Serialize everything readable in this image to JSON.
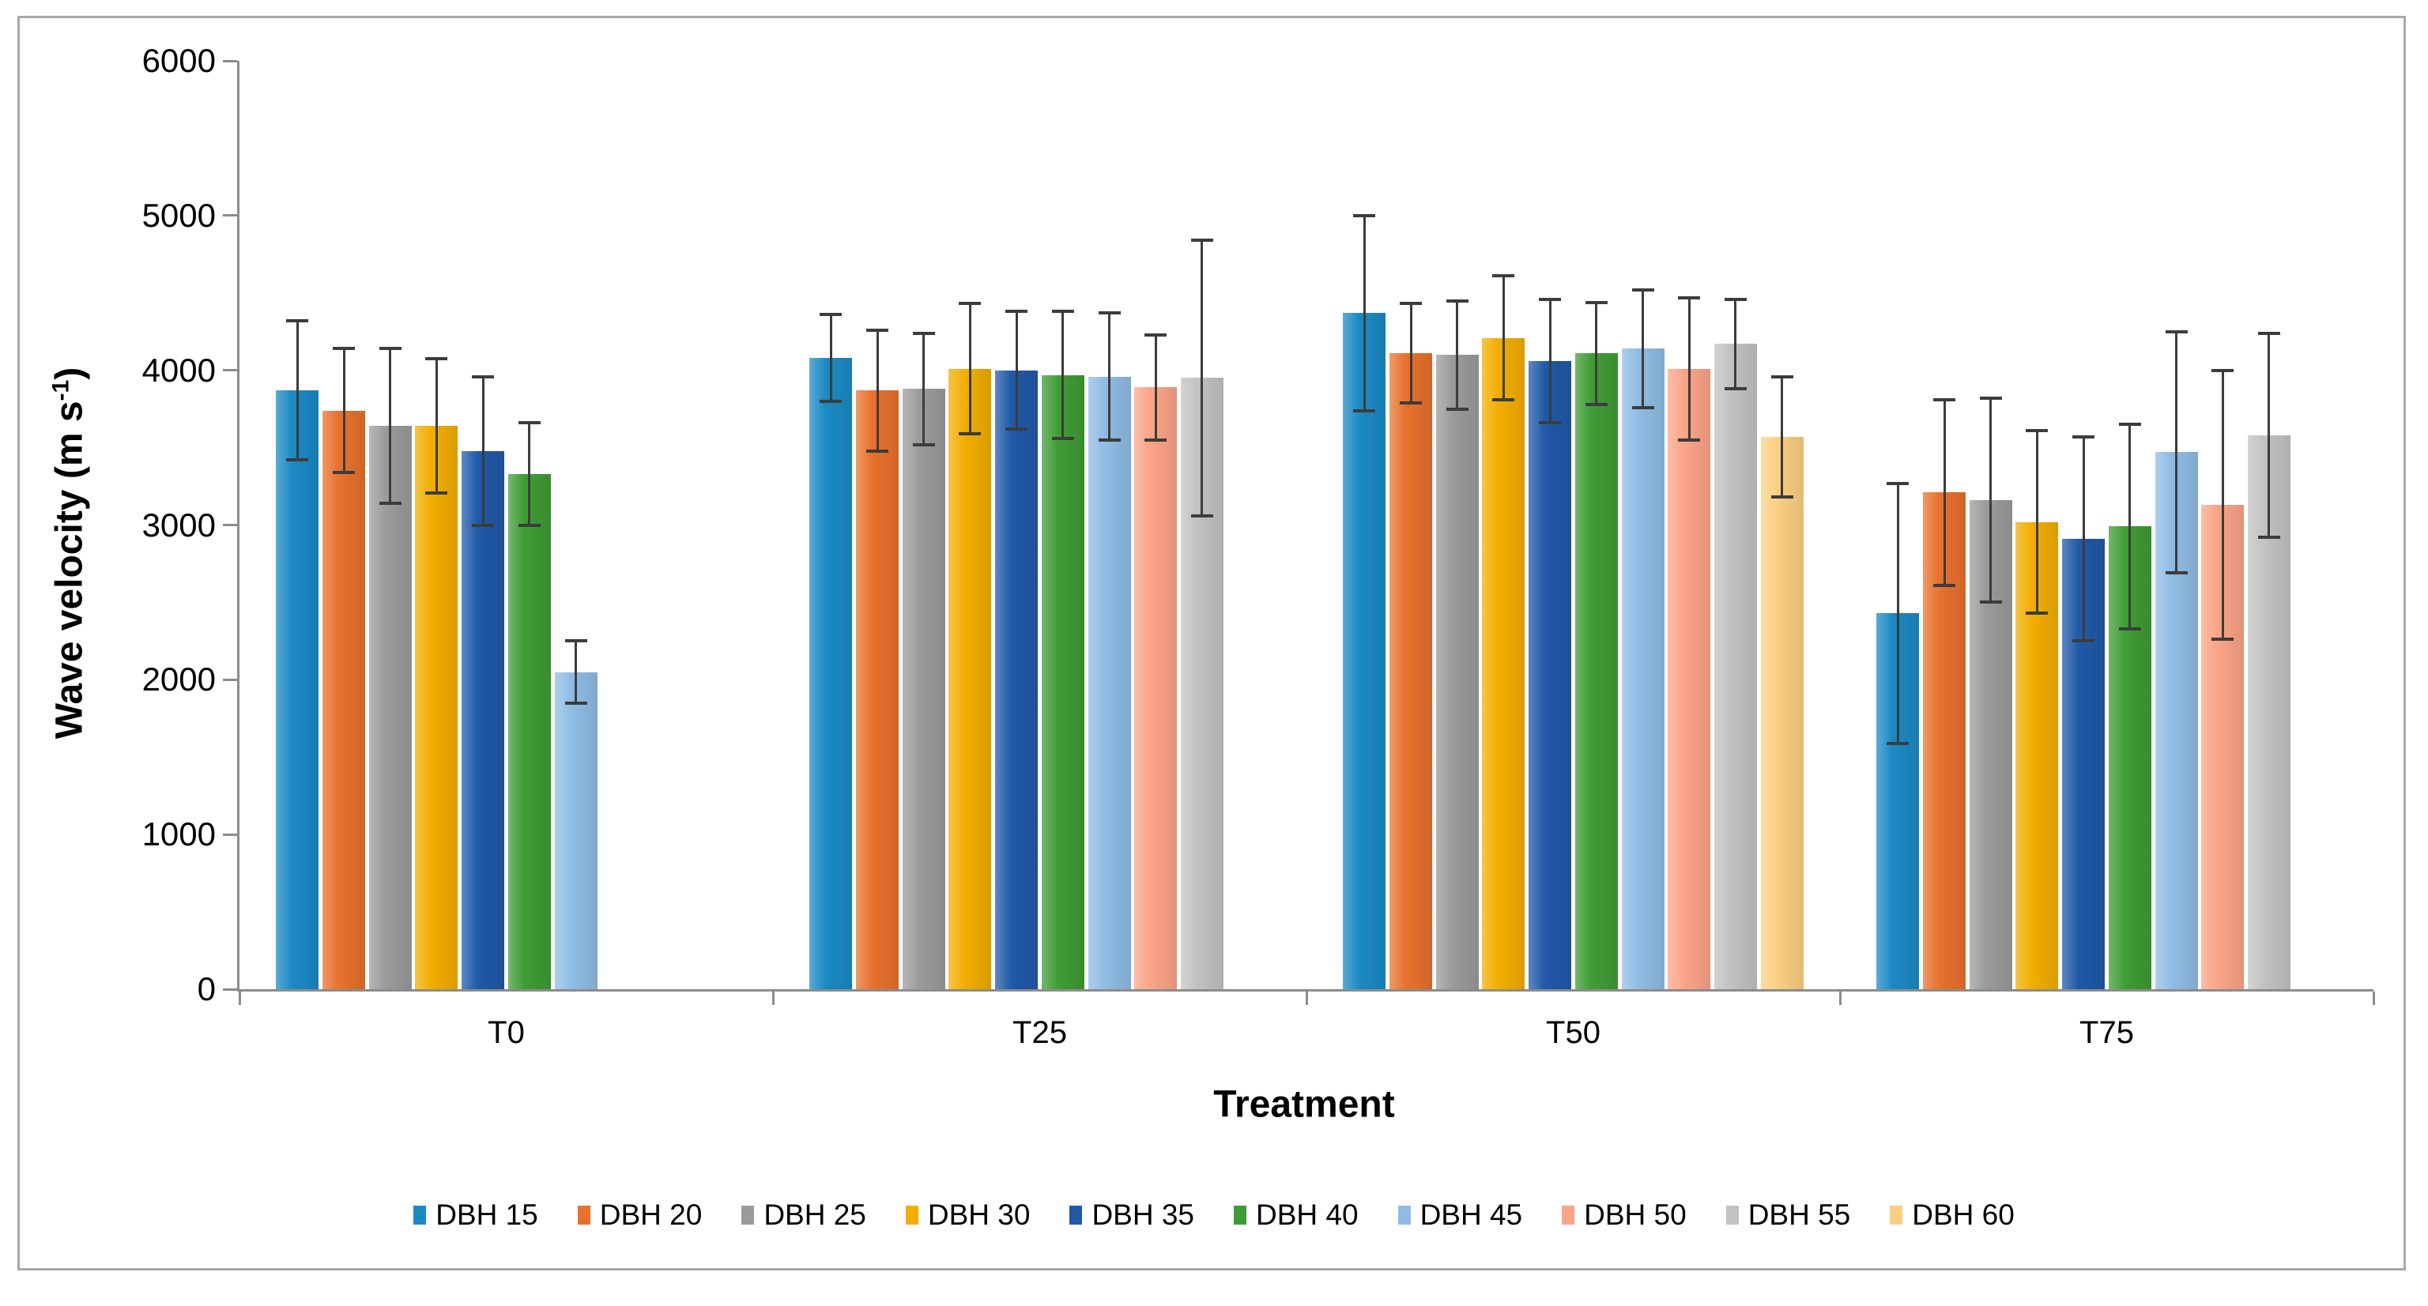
{
  "figure": {
    "background": "#ffffff",
    "border_color": "#a8a8a8",
    "axis_color": "#8c8c8c",
    "error_bar_color": "#3c3c3c"
  },
  "chart_data": {
    "type": "bar",
    "title": "",
    "xlabel": "Treatment",
    "ylabel_prefix": "Wave velocity (m s",
    "ylabel_sup": "-1",
    "ylabel_suffix": ")",
    "categories": [
      "T0",
      "T25",
      "T50",
      "T75"
    ],
    "ylim": [
      0,
      6000
    ],
    "yticks": [
      0,
      1000,
      2000,
      3000,
      4000,
      5000,
      6000
    ],
    "grid": false,
    "legend_position": "bottom",
    "error_bars": true,
    "series": [
      {
        "name": "DBH 15",
        "color": "#1b8ac4",
        "values": [
          3870,
          4080,
          4370,
          2430
        ],
        "errors": [
          450,
          280,
          630,
          840
        ]
      },
      {
        "name": "DBH 20",
        "color": "#e8712d",
        "values": [
          3740,
          3870,
          4110,
          3210
        ],
        "errors": [
          400,
          390,
          320,
          600
        ]
      },
      {
        "name": "DBH 25",
        "color": "#9b9b9b",
        "values": [
          3640,
          3880,
          4100,
          3160
        ],
        "errors": [
          500,
          360,
          350,
          660
        ]
      },
      {
        "name": "DBH 30",
        "color": "#f2ae00",
        "values": [
          3640,
          4010,
          4210,
          3020
        ],
        "errors": [
          435,
          420,
          400,
          590
        ]
      },
      {
        "name": "DBH 35",
        "color": "#2059a8",
        "values": [
          3480,
          4000,
          4060,
          2910
        ],
        "errors": [
          480,
          380,
          400,
          660
        ]
      },
      {
        "name": "DBH 40",
        "color": "#3f9c35",
        "values": [
          3330,
          3970,
          4110,
          2990
        ],
        "errors": [
          330,
          410,
          330,
          660
        ]
      },
      {
        "name": "DBH 45",
        "color": "#90bce4",
        "values": [
          2050,
          3960,
          4140,
          3470
        ],
        "errors": [
          200,
          410,
          380,
          780
        ]
      },
      {
        "name": "DBH 50",
        "color": "#fba488",
        "values": [
          null,
          3890,
          4010,
          3130
        ],
        "errors": [
          null,
          340,
          460,
          870
        ]
      },
      {
        "name": "DBH 55",
        "color": "#c2c2c2",
        "values": [
          null,
          3950,
          4170,
          3580
        ],
        "errors": [
          null,
          890,
          290,
          660
        ]
      },
      {
        "name": "DBH 60",
        "color": "#fbcf82",
        "values": [
          null,
          null,
          3570,
          null
        ],
        "errors": [
          null,
          null,
          390,
          null
        ]
      }
    ]
  }
}
